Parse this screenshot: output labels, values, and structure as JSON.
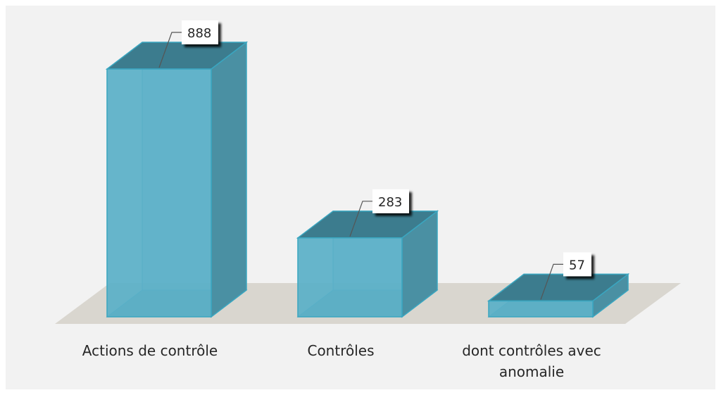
{
  "chart_data": {
    "type": "bar",
    "style": "3d-columns",
    "categories": [
      [
        "Actions de contrôle"
      ],
      [
        "Contrôles"
      ],
      [
        "dont contrôles avec",
        "anomalie"
      ]
    ],
    "values": [
      888,
      283,
      57
    ],
    "data_labels": [
      "888",
      "283",
      "57"
    ],
    "title": "",
    "xlabel": "",
    "ylabel": "",
    "ylim": [
      0,
      888
    ],
    "grid": false,
    "legend": "none",
    "colors": {
      "front": "#5ab0c8",
      "side": "#4a90a3",
      "top": "#3c7c8e",
      "edge": "#3aa6c0",
      "floor": "#d9d6cf",
      "background": "#f2f2f2",
      "label_box": "#ffffff",
      "leader": "#555555"
    }
  }
}
